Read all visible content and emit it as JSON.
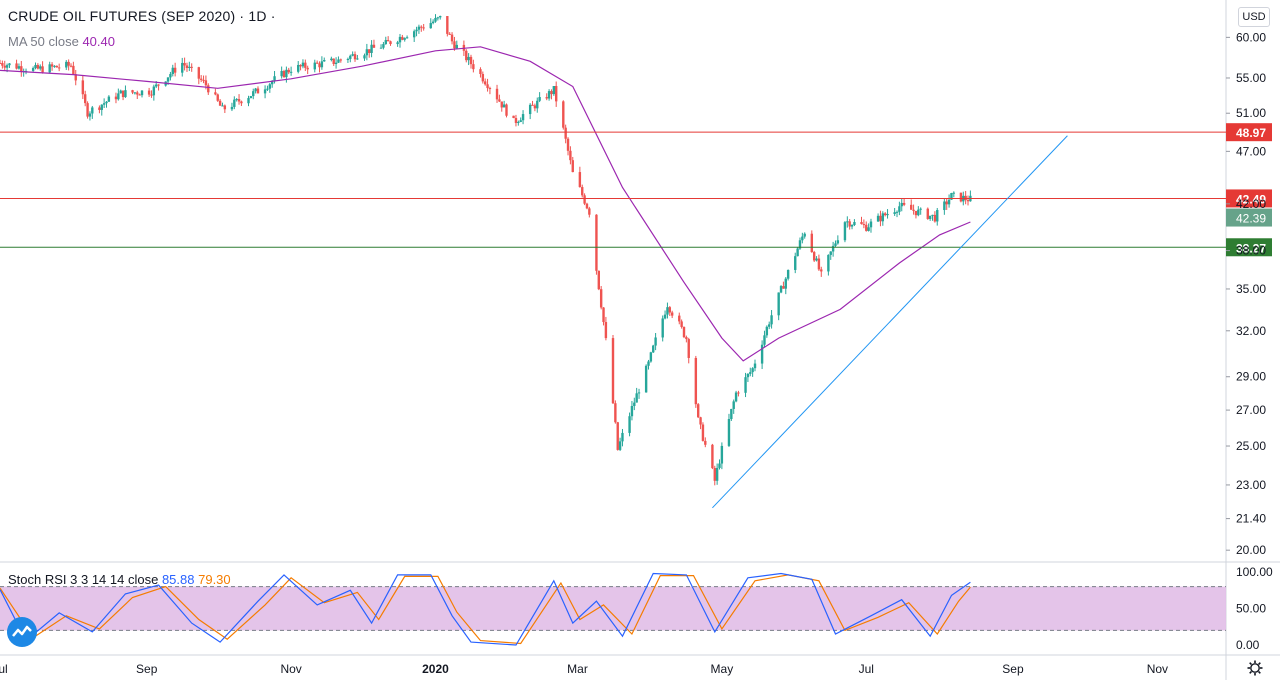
{
  "header": {
    "title": "CRUDE OIL FUTURES (SEP 2020) · 1D ·",
    "ma_label": "MA 50 close",
    "ma_value": "40.40",
    "stoch_label": "Stoch RSI 3 3 14 14 close",
    "stoch_k": "85.88",
    "stoch_d": "79.30",
    "currency": "USD"
  },
  "colors": {
    "up": "#26a69a",
    "down": "#ef5350",
    "ma": "#9c27b0",
    "trendline": "#2196f3",
    "resistance": "#e53935",
    "support": "#2e7d32",
    "stoch_k": "#2962ff",
    "stoch_d": "#f57c00",
    "stoch_band": "#e1bee7"
  },
  "chart_data": {
    "type": "candlestick",
    "title": "CRUDE OIL FUTURES (SEP 2020) · 1D ·",
    "y_axis": {
      "scale": "log",
      "ticks": [
        "20.00",
        "21.40",
        "23.00",
        "25.00",
        "27.00",
        "29.00",
        "32.00",
        "35.00",
        "38.00",
        "42.00",
        "47.00",
        "51.00",
        "55.00",
        "60.00"
      ],
      "range": [
        19.5,
        65
      ]
    },
    "x_axis": {
      "tick_labels": [
        "Jul",
        "Sep",
        "Nov",
        "2020",
        "Mar",
        "May",
        "Jul",
        "Sep",
        "Nov"
      ],
      "range": [
        "2019-07-01",
        "2020-11-30"
      ]
    },
    "horizontal_lines": [
      {
        "value": 48.97,
        "label": "48.97",
        "color": "#e53935"
      },
      {
        "value": 42.49,
        "label": "42.49",
        "color": "#e53935"
      },
      {
        "value": 38.27,
        "label": "38.27",
        "color": "#2e7d32"
      }
    ],
    "last_price": {
      "value": 42.39,
      "label": "42.39"
    },
    "trendline": {
      "from": [
        "2020-04-27",
        21.9
      ],
      "to": [
        "2020-09-24",
        48.6
      ]
    },
    "price_path": [
      [
        "2019-07-01",
        56.8
      ],
      [
        "2019-07-15",
        56.0
      ],
      [
        "2019-07-31",
        56.5
      ],
      [
        "2019-08-07",
        51.1
      ],
      [
        "2019-08-21",
        53.2
      ],
      [
        "2019-09-03",
        53.5
      ],
      [
        "2019-09-16",
        56.8
      ],
      [
        "2019-09-26",
        54.2
      ],
      [
        "2019-10-03",
        51.4
      ],
      [
        "2019-10-18",
        53.5
      ],
      [
        "2019-11-01",
        56.1
      ],
      [
        "2019-11-20",
        57.0
      ],
      [
        "2019-12-10",
        59.0
      ],
      [
        "2020-01-03",
        62.5
      ],
      [
        "2020-01-08",
        59.5
      ],
      [
        "2020-01-24",
        54.0
      ],
      [
        "2020-02-03",
        50.0
      ],
      [
        "2020-02-20",
        53.6
      ],
      [
        "2020-02-28",
        44.8
      ],
      [
        "2020-03-06",
        41.3
      ],
      [
        "2020-03-09",
        36.5
      ],
      [
        "2020-03-18",
        24.8
      ],
      [
        "2020-03-31",
        29.8
      ],
      [
        "2020-04-08",
        33.9
      ],
      [
        "2020-04-16",
        31.5
      ],
      [
        "2020-04-21",
        26.4
      ],
      [
        "2020-04-28",
        23.2
      ],
      [
        "2020-05-07",
        28.0
      ],
      [
        "2020-05-14",
        29.5
      ],
      [
        "2020-05-28",
        35.8
      ],
      [
        "2020-06-05",
        39.6
      ],
      [
        "2020-06-12",
        36.0
      ],
      [
        "2020-06-22",
        40.5
      ],
      [
        "2020-07-01",
        40.0
      ],
      [
        "2020-07-15",
        41.8
      ],
      [
        "2020-07-30",
        40.8
      ],
      [
        "2020-08-06",
        42.7
      ],
      [
        "2020-08-14",
        42.39
      ]
    ],
    "ma50_path": [
      [
        "2019-07-01",
        55.9
      ],
      [
        "2019-08-01",
        55.4
      ],
      [
        "2019-09-01",
        54.6
      ],
      [
        "2019-10-01",
        53.8
      ],
      [
        "2019-11-01",
        54.9
      ],
      [
        "2019-12-01",
        56.4
      ],
      [
        "2020-01-01",
        58.3
      ],
      [
        "2020-01-20",
        58.8
      ],
      [
        "2020-02-10",
        57.0
      ],
      [
        "2020-02-28",
        54.0
      ],
      [
        "2020-03-20",
        43.5
      ],
      [
        "2020-04-15",
        35.5
      ],
      [
        "2020-05-01",
        31.5
      ],
      [
        "2020-05-10",
        30.0
      ],
      [
        "2020-05-25",
        31.5
      ],
      [
        "2020-06-20",
        33.5
      ],
      [
        "2020-07-15",
        37.0
      ],
      [
        "2020-08-01",
        39.3
      ],
      [
        "2020-08-14",
        40.4
      ]
    ],
    "oscillator": {
      "name": "Stoch RSI 3 3 14 14 close",
      "range": [
        0,
        100
      ],
      "ticks": [
        "0.00",
        "50.00",
        "100.00"
      ],
      "bands": [
        20,
        80
      ],
      "k_path": [
        [
          "2019-07-01",
          76
        ],
        [
          "2019-07-12",
          6
        ],
        [
          "2019-07-26",
          44
        ],
        [
          "2019-08-09",
          18
        ],
        [
          "2019-08-23",
          70
        ],
        [
          "2019-09-06",
          82
        ],
        [
          "2019-09-20",
          30
        ],
        [
          "2019-10-02",
          4
        ],
        [
          "2019-10-18",
          60
        ],
        [
          "2019-10-29",
          96
        ],
        [
          "2019-11-12",
          55
        ],
        [
          "2019-11-26",
          75
        ],
        [
          "2019-12-05",
          30
        ],
        [
          "2019-12-16",
          96
        ],
        [
          "2019-12-30",
          96
        ],
        [
          "2020-01-08",
          40
        ],
        [
          "2020-01-16",
          4
        ],
        [
          "2020-02-04",
          0
        ],
        [
          "2020-02-20",
          88
        ],
        [
          "2020-02-28",
          30
        ],
        [
          "2020-03-09",
          60
        ],
        [
          "2020-03-20",
          12
        ],
        [
          "2020-04-02",
          98
        ],
        [
          "2020-04-16",
          96
        ],
        [
          "2020-04-28",
          18
        ],
        [
          "2020-05-12",
          92
        ],
        [
          "2020-05-26",
          98
        ],
        [
          "2020-06-08",
          90
        ],
        [
          "2020-06-18",
          15
        ],
        [
          "2020-07-03",
          40
        ],
        [
          "2020-07-16",
          62
        ],
        [
          "2020-07-28",
          12
        ],
        [
          "2020-08-06",
          68
        ],
        [
          "2020-08-14",
          85.88
        ]
      ],
      "d_path": [
        [
          "2019-07-01",
          78
        ],
        [
          "2019-07-15",
          10
        ],
        [
          "2019-07-29",
          40
        ],
        [
          "2019-08-12",
          22
        ],
        [
          "2019-08-26",
          65
        ],
        [
          "2019-09-09",
          80
        ],
        [
          "2019-09-23",
          35
        ],
        [
          "2019-10-05",
          8
        ],
        [
          "2019-10-21",
          55
        ],
        [
          "2019-11-01",
          92
        ],
        [
          "2019-11-15",
          58
        ],
        [
          "2019-11-29",
          72
        ],
        [
          "2019-12-08",
          35
        ],
        [
          "2019-12-19",
          94
        ],
        [
          "2020-01-02",
          94
        ],
        [
          "2020-01-10",
          45
        ],
        [
          "2020-01-20",
          6
        ],
        [
          "2020-02-06",
          2
        ],
        [
          "2020-02-23",
          85
        ],
        [
          "2020-03-02",
          35
        ],
        [
          "2020-03-12",
          55
        ],
        [
          "2020-03-24",
          15
        ],
        [
          "2020-04-05",
          95
        ],
        [
          "2020-04-19",
          95
        ],
        [
          "2020-05-01",
          22
        ],
        [
          "2020-05-15",
          88
        ],
        [
          "2020-05-29",
          96
        ],
        [
          "2020-06-11",
          88
        ],
        [
          "2020-06-22",
          20
        ],
        [
          "2020-07-06",
          38
        ],
        [
          "2020-07-19",
          58
        ],
        [
          "2020-07-31",
          15
        ],
        [
          "2020-08-09",
          60
        ],
        [
          "2020-08-14",
          79.3
        ]
      ]
    }
  }
}
